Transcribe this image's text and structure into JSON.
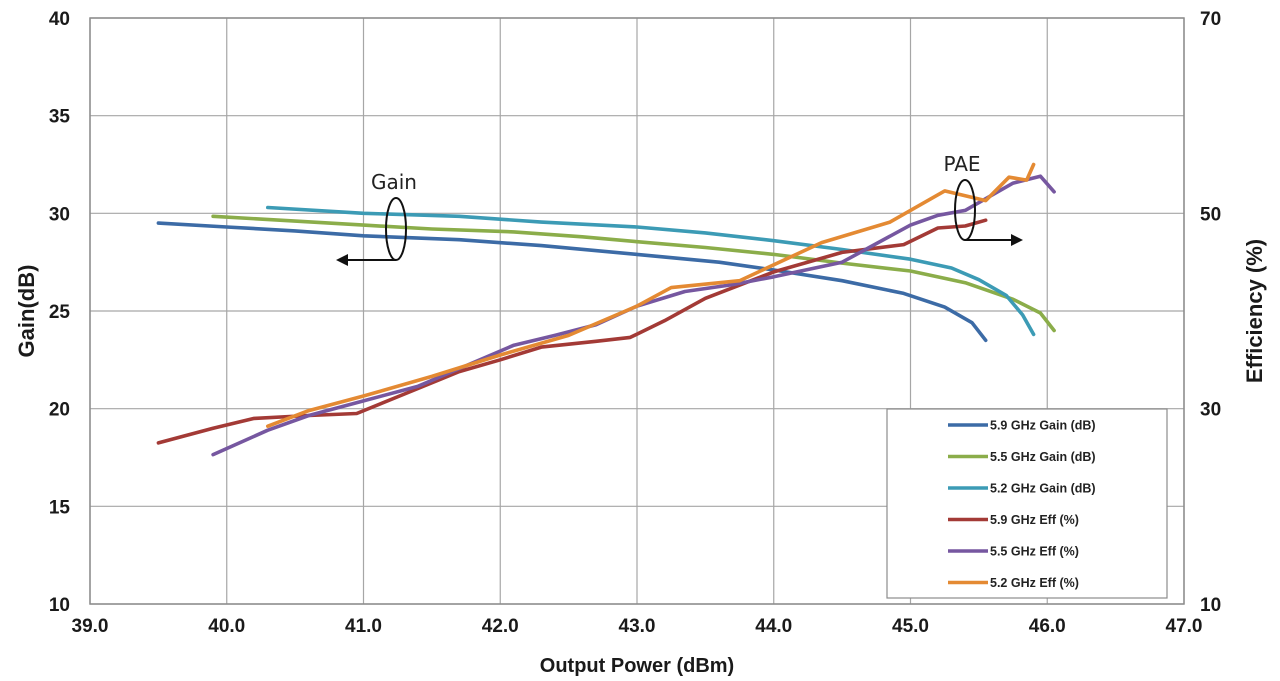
{
  "chart_data": {
    "type": "line",
    "xlabel": "Output Power (dBm)",
    "ylabel": "Gain(dB)",
    "y2label": "Efficiency (%)",
    "xlim": [
      39.0,
      47.0
    ],
    "ylim": [
      10,
      40
    ],
    "y2lim": [
      10,
      70
    ],
    "x_ticks": [
      "39.0",
      "40.0",
      "41.0",
      "42.0",
      "43.0",
      "44.0",
      "45.0",
      "46.0",
      "47.0"
    ],
    "y_ticks": [
      "10",
      "15",
      "20",
      "25",
      "30",
      "35",
      "40"
    ],
    "y2_ticks": [
      "10",
      "30",
      "50",
      "70"
    ],
    "grid": true,
    "legend_position": "bottom-right",
    "annotations": {
      "gain": "Gain",
      "pae": "PAE"
    },
    "series": [
      {
        "name": "5.9 GHz Gain (dB)",
        "axis": "left",
        "color": "#3C6BA6",
        "x": [
          39.5,
          40.0,
          40.5,
          41.0,
          41.7,
          42.3,
          43.0,
          43.6,
          44.0,
          44.5,
          44.95,
          45.25,
          45.45,
          45.55
        ],
        "y": [
          29.5,
          29.3,
          29.1,
          28.85,
          28.65,
          28.35,
          27.9,
          27.5,
          27.1,
          26.55,
          25.9,
          25.2,
          24.4,
          23.5
        ]
      },
      {
        "name": "5.5 GHz Gain (dB)",
        "axis": "left",
        "color": "#8BAD4A",
        "x": [
          39.9,
          40.5,
          41.0,
          41.5,
          42.1,
          42.6,
          43.0,
          43.5,
          44.0,
          44.5,
          45.0,
          45.4,
          45.75,
          45.95,
          46.05
        ],
        "y": [
          29.85,
          29.6,
          29.4,
          29.2,
          29.05,
          28.8,
          28.55,
          28.25,
          27.9,
          27.45,
          27.05,
          26.45,
          25.6,
          24.9,
          24.0
        ]
      },
      {
        "name": "5.2 GHz Gain (dB)",
        "axis": "left",
        "color": "#3C9BB5",
        "x": [
          40.3,
          41.0,
          41.7,
          42.3,
          43.0,
          43.5,
          44.0,
          44.5,
          45.0,
          45.3,
          45.5,
          45.7,
          45.82,
          45.9
        ],
        "y": [
          30.3,
          30.0,
          29.85,
          29.55,
          29.3,
          29.0,
          28.6,
          28.15,
          27.65,
          27.2,
          26.6,
          25.8,
          24.8,
          23.8
        ]
      },
      {
        "name": "5.9 GHz Eff (%)",
        "axis": "right",
        "color": "#A33A36",
        "x": [
          39.5,
          39.9,
          40.2,
          40.6,
          40.95,
          41.3,
          41.7,
          42.0,
          42.3,
          42.7,
          42.95,
          43.2,
          43.5,
          44.0,
          44.5,
          44.95,
          45.2,
          45.4,
          45.55
        ],
        "y": [
          26.5,
          28.0,
          29.0,
          29.3,
          29.5,
          31.5,
          33.8,
          35.0,
          36.3,
          36.9,
          37.3,
          39.0,
          41.3,
          44.0,
          46.0,
          46.8,
          48.5,
          48.7,
          49.3
        ]
      },
      {
        "name": "5.5 GHz Eff (%)",
        "axis": "right",
        "color": "#7657A0",
        "x": [
          39.9,
          40.3,
          40.6,
          41.0,
          41.4,
          42.1,
          42.4,
          42.7,
          43.0,
          43.35,
          43.7,
          44.0,
          44.5,
          45.0,
          45.2,
          45.4,
          45.55,
          45.75,
          45.95,
          46.05
        ],
        "y": [
          25.3,
          27.8,
          29.3,
          30.8,
          32.3,
          36.5,
          37.5,
          38.6,
          40.5,
          42.0,
          42.7,
          43.5,
          45.0,
          48.8,
          49.8,
          50.3,
          51.5,
          53.1,
          53.8,
          52.2
        ]
      },
      {
        "name": "5.2 GHz Eff (%)",
        "axis": "right",
        "color": "#E48A33",
        "x": [
          40.3,
          40.6,
          41.0,
          41.5,
          42.0,
          42.5,
          43.0,
          43.25,
          43.75,
          44.35,
          44.85,
          45.25,
          45.55,
          45.72,
          45.85,
          45.9
        ],
        "y": [
          28.2,
          29.8,
          31.3,
          33.3,
          35.5,
          37.5,
          40.5,
          42.4,
          43.1,
          47.0,
          49.1,
          52.3,
          51.3,
          53.7,
          53.4,
          55.0
        ]
      }
    ]
  }
}
